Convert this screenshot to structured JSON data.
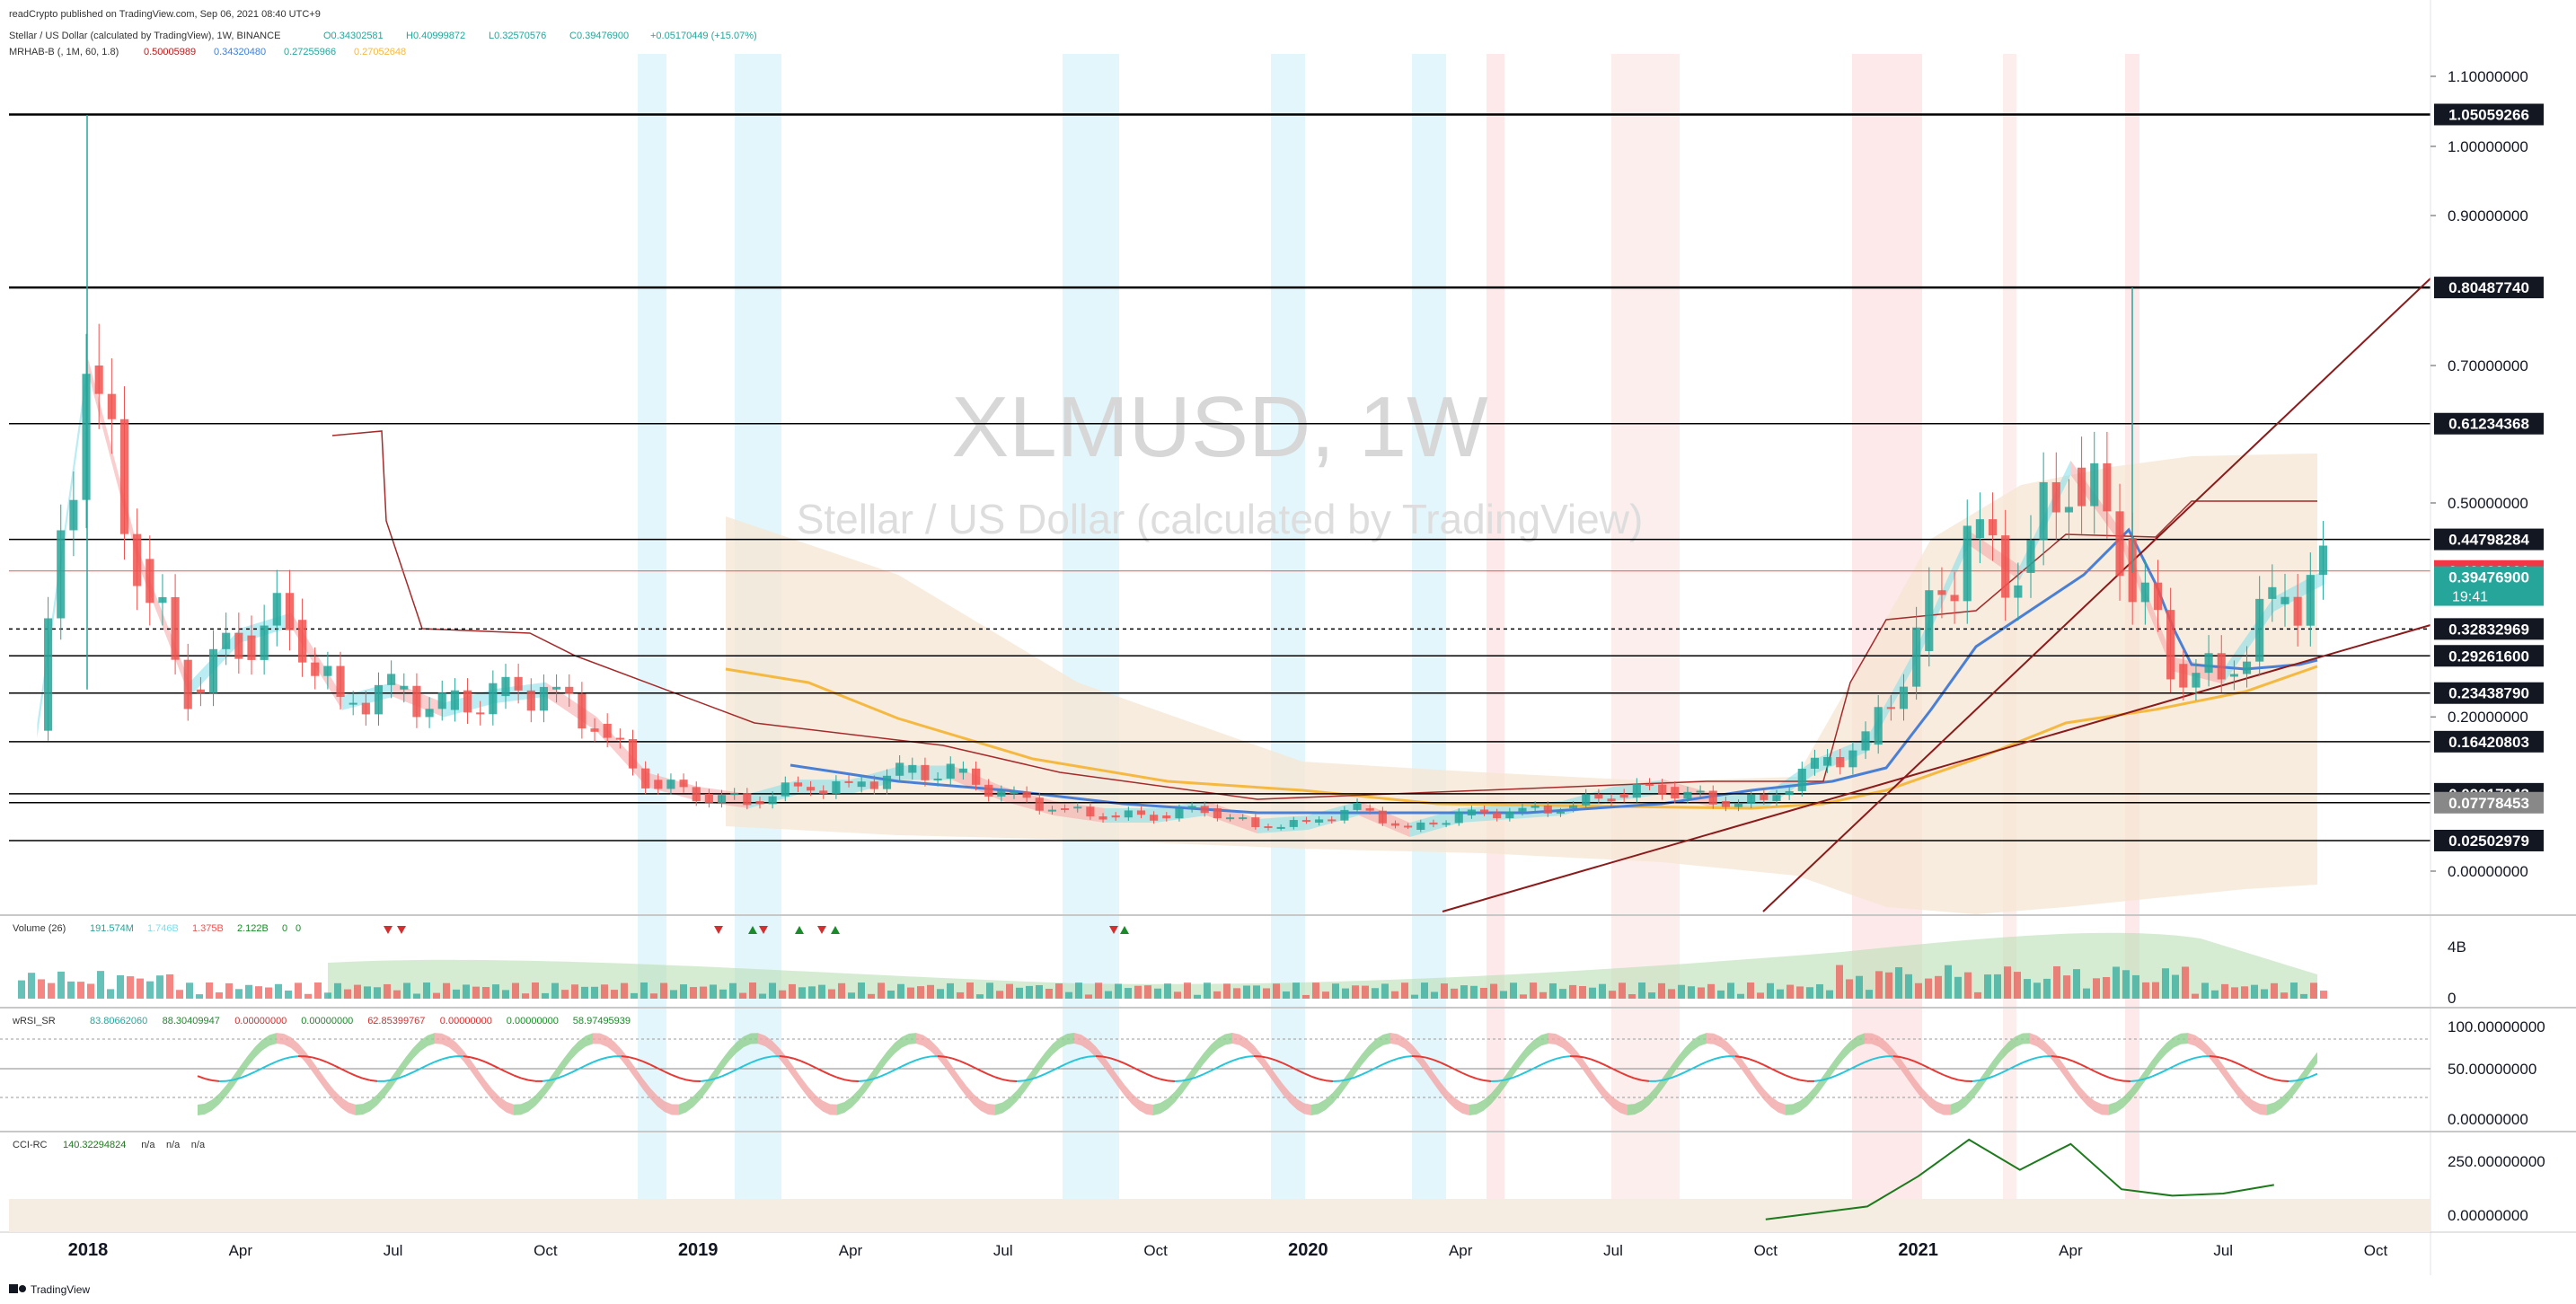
{
  "header": {
    "published": "readCrypto published on TradingView.com, Sep 06, 2021 08:40 UTC+9",
    "symbol_line": "Stellar / US Dollar (calculated by TradingView), 1W, BINANCE",
    "ohlc": {
      "open": "O0.34302581",
      "high": "H0.40999872",
      "low": "L0.32570576",
      "close": "C0.39476900",
      "change": "+0.05170449 (+15.07%)"
    },
    "mrhab": {
      "name": "MRHAB-B (, 1M, 60, 1.8)",
      "v1": "0.50005989",
      "v2": "0.34320480",
      "v3": "0.27255966",
      "v4": "0.27052648"
    }
  },
  "watermark": {
    "ticker": "XLMUSD, 1W",
    "name": "Stellar / US Dollar (calculated by TradingView)"
  },
  "colors": {
    "up": "#26a69a",
    "down": "#ef5350",
    "hline": "#000000",
    "current_price": "#ef5350",
    "trendline": "#8b1a1a",
    "ma_orange": "#f5b942",
    "ma_blue": "#4a7fd6",
    "ribbon_cyan": "#80deea",
    "ribbon_red": "#f5a5a5",
    "band_fill": "#f5e6d3"
  },
  "chart_data": {
    "type": "candlestick",
    "symbol": "XLMUSD",
    "timeframe": "1W",
    "x_axis_labels": [
      "2018",
      "Apr",
      "Jul",
      "Oct",
      "2019",
      "Apr",
      "Jul",
      "Oct",
      "2020",
      "Apr",
      "Jul",
      "Oct",
      "2021",
      "Apr",
      "Jul",
      "Oct"
    ],
    "y_axis_ticks": [
      "1.10000000",
      "1.00000000",
      "0.90000000",
      "0.70000000",
      "0.50000000",
      "0.20000000",
      "0.00000000"
    ],
    "horizontal_levels": [
      {
        "value": 1.05059266,
        "label": "1.05059266"
      },
      {
        "value": 0.8048774,
        "label": "0.80487740"
      },
      {
        "value": 0.61234368,
        "label": "0.61234368"
      },
      {
        "value": 0.44798284,
        "label": "0.44798284"
      },
      {
        "value": 0.32832969,
        "label": "0.32832969"
      },
      {
        "value": 0.292616,
        "label": "0.29261600"
      },
      {
        "value": 0.2343879,
        "label": "0.23438790"
      },
      {
        "value": 0.16420803,
        "label": "0.16420803"
      },
      {
        "value": 0.09017343,
        "label": "0.09017343"
      },
      {
        "value": 0.07778453,
        "label": "0.07778453"
      },
      {
        "value": 0.02502979,
        "label": "0.02502979"
      }
    ],
    "current_price_line": {
      "value": 0.40293161,
      "label": "0.40293161"
    },
    "last_price": {
      "value": 0.394769,
      "label": "0.39476900",
      "countdown": "19:41"
    },
    "price_series": [
      [
        "2017-12",
        0.18
      ],
      [
        "2018-01",
        0.7
      ],
      [
        "2018-02",
        0.42
      ],
      [
        "2018-03",
        0.24
      ],
      [
        "2018-04",
        0.32
      ],
      [
        "2018-05",
        0.34
      ],
      [
        "2018-06",
        0.22
      ],
      [
        "2018-07",
        0.24
      ],
      [
        "2018-08",
        0.21
      ],
      [
        "2018-09",
        0.23
      ],
      [
        "2018-10",
        0.24
      ],
      [
        "2018-11",
        0.19
      ],
      [
        "2018-12",
        0.11
      ],
      [
        "2019-01",
        0.09
      ],
      [
        "2019-02",
        0.08
      ],
      [
        "2019-03",
        0.1
      ],
      [
        "2019-04",
        0.1
      ],
      [
        "2019-05",
        0.12
      ],
      [
        "2019-06",
        0.12
      ],
      [
        "2019-07",
        0.09
      ],
      [
        "2019-08",
        0.07
      ],
      [
        "2019-09",
        0.06
      ],
      [
        "2019-10",
        0.06
      ],
      [
        "2019-11",
        0.07
      ],
      [
        "2019-12",
        0.045
      ],
      [
        "2020-01",
        0.05
      ],
      [
        "2020-02",
        0.07
      ],
      [
        "2020-03",
        0.04
      ],
      [
        "2020-04",
        0.06
      ],
      [
        "2020-05",
        0.065
      ],
      [
        "2020-06",
        0.07
      ],
      [
        "2020-07",
        0.09
      ],
      [
        "2020-08",
        0.1
      ],
      [
        "2020-09",
        0.08
      ],
      [
        "2020-10",
        0.08
      ],
      [
        "2020-11",
        0.13
      ],
      [
        "2020-12",
        0.16
      ],
      [
        "2021-01",
        0.3
      ],
      [
        "2021-02",
        0.45
      ],
      [
        "2021-03",
        0.4
      ],
      [
        "2021-04",
        0.55
      ],
      [
        "2021-05",
        0.45
      ],
      [
        "2021-06",
        0.28
      ],
      [
        "2021-07",
        0.26
      ],
      [
        "2021-08",
        0.36
      ],
      [
        "2021-09",
        0.395
      ]
    ],
    "volume_pane": {
      "title": "Volume (26)",
      "values": [
        "191.574M",
        "1.746B",
        "1.375B",
        "2.122B",
        "0",
        "0"
      ],
      "axis_labels": [
        "4B",
        "0"
      ]
    },
    "rsi_pane": {
      "title": "wRSI_SR",
      "values": [
        "83.80662060",
        "88.30409947",
        "0.00000000",
        "0.00000000",
        "62.85399767",
        "0.00000000",
        "0.00000000",
        "58.97495939"
      ],
      "axis_labels": [
        "100.00000000",
        "50.00000000",
        "0.00000000"
      ]
    },
    "cci_pane": {
      "title": "CCI-RC",
      "values": [
        "140.32294824",
        "n/a",
        "n/a",
        "n/a"
      ],
      "axis_labels": [
        "250.00000000",
        "0.00000000"
      ],
      "series": [
        [
          "2020-10",
          -20
        ],
        [
          "2020-11",
          10
        ],
        [
          "2020-12",
          40
        ],
        [
          "2021-01",
          180
        ],
        [
          "2021-02",
          350
        ],
        [
          "2021-03",
          210
        ],
        [
          "2021-04",
          330
        ],
        [
          "2021-05",
          120
        ],
        [
          "2021-06",
          90
        ],
        [
          "2021-07",
          100
        ],
        [
          "2021-08",
          140
        ]
      ]
    }
  },
  "footer": {
    "brand": "TradingView"
  }
}
